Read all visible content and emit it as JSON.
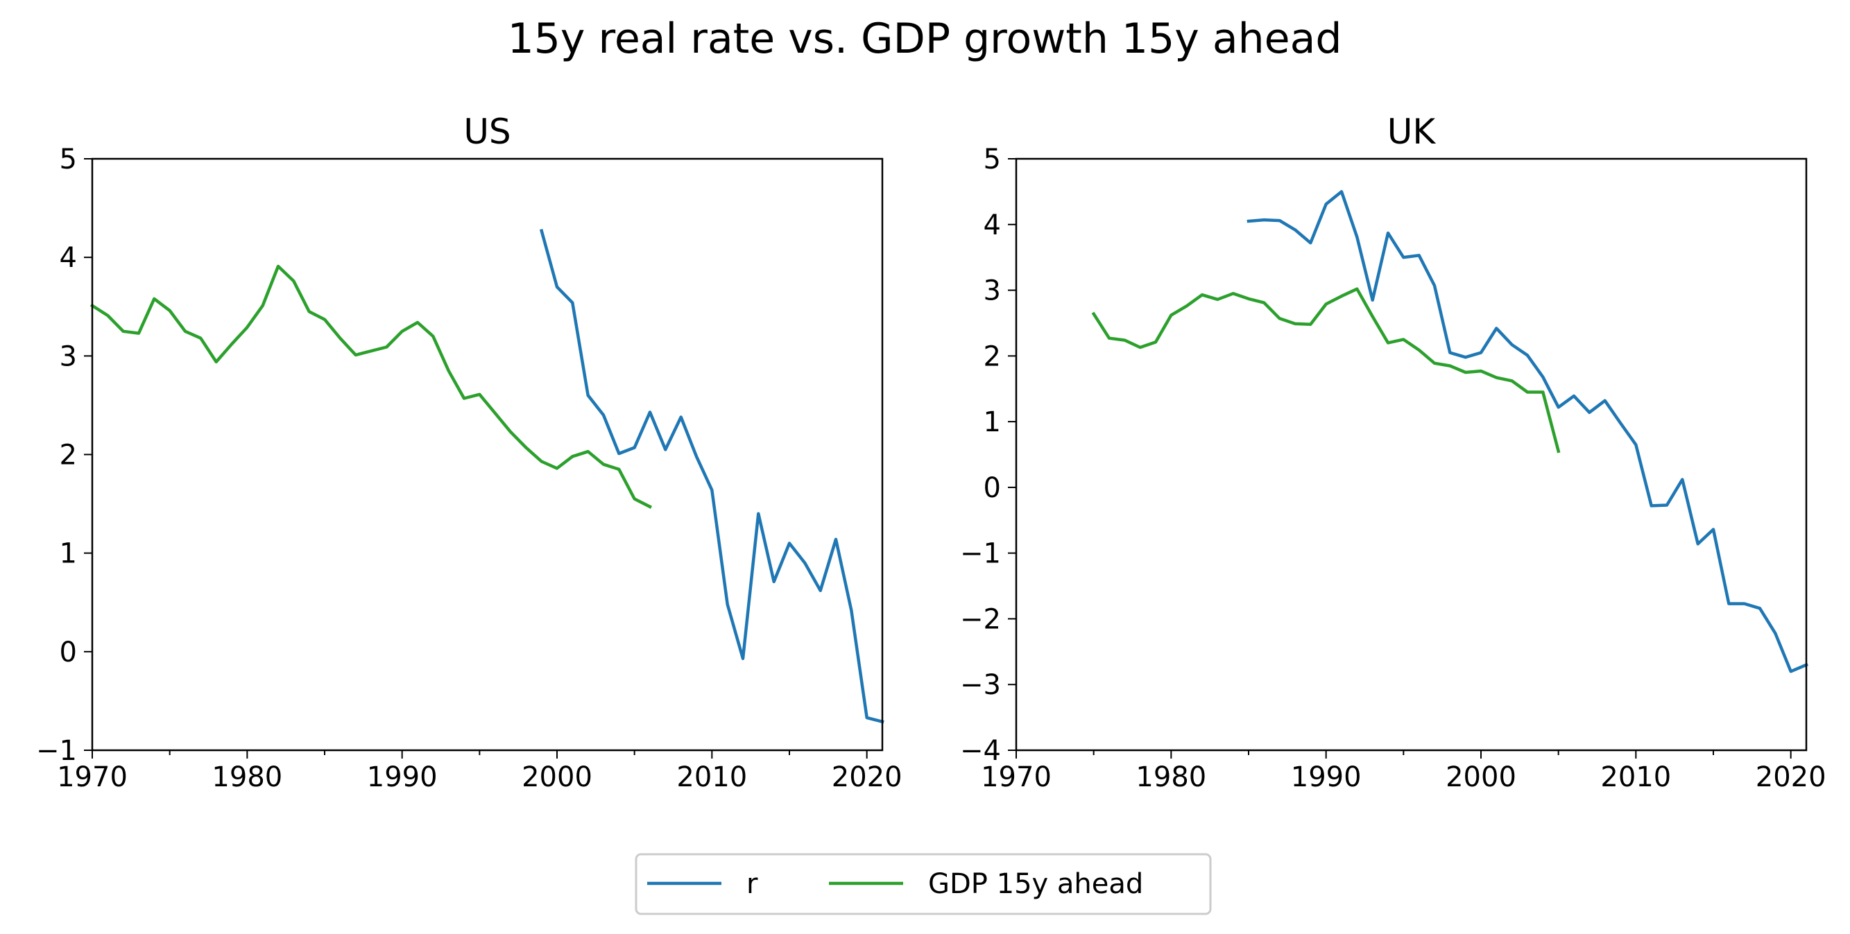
{
  "figure": {
    "suptitle": "15y real rate vs. GDP growth 15y ahead"
  },
  "legend": {
    "entries": [
      {
        "label": "r",
        "color": "#1f77b4"
      },
      {
        "label": "GDP 15y ahead",
        "color": "#2ca02c"
      }
    ],
    "placement": "bottom-center"
  },
  "chart_data": [
    {
      "type": "line",
      "title": "US",
      "xlabel": "",
      "ylabel": "",
      "xlim": [
        1970,
        2021
      ],
      "ylim": [
        -1,
        5
      ],
      "xticks": [
        1970,
        1980,
        1990,
        2000,
        2010,
        2020
      ],
      "xticklabels": [
        "1970",
        "1980",
        "1990",
        "2000",
        "2010",
        "2020"
      ],
      "yticks": [
        -1,
        0,
        1,
        2,
        3,
        4,
        5
      ],
      "yticklabels": [
        "−1",
        "0",
        "1",
        "2",
        "3",
        "4",
        "5"
      ],
      "grid": false,
      "series": [
        {
          "name": "r",
          "color": "#1f77b4",
          "x": [
            1999,
            2000,
            2001,
            2002,
            2003,
            2004,
            2005,
            2006,
            2007,
            2008,
            2009,
            2010,
            2011,
            2012,
            2013,
            2014,
            2015,
            2016,
            2017,
            2018,
            2019,
            2020,
            2021
          ],
          "y": [
            4.27,
            3.7,
            3.54,
            2.6,
            2.4,
            2.01,
            2.07,
            2.43,
            2.05,
            2.38,
            1.98,
            1.64,
            0.48,
            -0.07,
            1.4,
            0.71,
            1.1,
            0.9,
            0.62,
            1.14,
            0.42,
            -0.67,
            -0.71
          ]
        },
        {
          "name": "GDP 15y ahead",
          "color": "#2ca02c",
          "x": [
            1970,
            1971,
            1972,
            1973,
            1974,
            1975,
            1976,
            1977,
            1978,
            1979,
            1980,
            1981,
            1982,
            1983,
            1984,
            1985,
            1986,
            1987,
            1988,
            1989,
            1990,
            1991,
            1992,
            1993,
            1994,
            1995,
            1996,
            1997,
            1998,
            1999,
            2000,
            2001,
            2002,
            2003,
            2004,
            2005,
            2006
          ],
          "y": [
            3.51,
            3.41,
            3.25,
            3.23,
            3.58,
            3.46,
            3.25,
            3.18,
            2.94,
            3.12,
            3.29,
            3.51,
            3.91,
            3.76,
            3.45,
            3.37,
            3.18,
            3.01,
            3.05,
            3.09,
            3.25,
            3.34,
            3.2,
            2.85,
            2.57,
            2.61,
            2.42,
            2.23,
            2.07,
            1.93,
            1.86,
            1.98,
            2.03,
            1.9,
            1.85,
            1.55,
            1.47
          ]
        }
      ]
    },
    {
      "type": "line",
      "title": "UK",
      "xlabel": "",
      "ylabel": "",
      "xlim": [
        1970,
        2021
      ],
      "ylim": [
        -4,
        5
      ],
      "xticks": [
        1970,
        1980,
        1990,
        2000,
        2010,
        2020
      ],
      "xticklabels": [
        "1970",
        "1980",
        "1990",
        "2000",
        "2010",
        "2020"
      ],
      "yticks": [
        -4,
        -3,
        -2,
        -1,
        0,
        1,
        2,
        3,
        4,
        5
      ],
      "yticklabels": [
        "−4",
        "−3",
        "−2",
        "−1",
        "0",
        "1",
        "2",
        "3",
        "4",
        "5"
      ],
      "grid": false,
      "series": [
        {
          "name": "r",
          "color": "#1f77b4",
          "x": [
            1985,
            1986,
            1987,
            1988,
            1989,
            1990,
            1991,
            1992,
            1993,
            1994,
            1995,
            1996,
            1997,
            1998,
            1999,
            2000,
            2001,
            2002,
            2003,
            2004,
            2005,
            2006,
            2007,
            2008,
            2009,
            2010,
            2011,
            2012,
            2013,
            2014,
            2015,
            2016,
            2017,
            2018,
            2019,
            2020,
            2021
          ],
          "y": [
            4.05,
            4.07,
            4.06,
            3.92,
            3.72,
            4.31,
            4.5,
            3.81,
            2.85,
            3.87,
            3.5,
            3.53,
            3.07,
            2.05,
            1.98,
            2.05,
            2.42,
            2.17,
            2.01,
            1.68,
            1.22,
            1.39,
            1.14,
            1.32,
            0.98,
            0.65,
            -0.28,
            -0.27,
            0.12,
            -0.86,
            -0.64,
            -1.77,
            -1.77,
            -1.84,
            -2.22,
            -2.8,
            -2.7
          ]
        },
        {
          "name": "GDP 15y ahead",
          "color": "#2ca02c",
          "x": [
            1975,
            1976,
            1977,
            1978,
            1979,
            1980,
            1981,
            1982,
            1983,
            1984,
            1985,
            1986,
            1987,
            1988,
            1989,
            1990,
            1991,
            1992,
            1993,
            1994,
            1995,
            1996,
            1997,
            1998,
            1999,
            2000,
            2001,
            2002,
            2003,
            2004,
            2005
          ],
          "y": [
            2.64,
            2.27,
            2.24,
            2.13,
            2.21,
            2.62,
            2.76,
            2.93,
            2.86,
            2.95,
            2.87,
            2.81,
            2.57,
            2.49,
            2.48,
            2.79,
            2.91,
            3.02,
            2.6,
            2.2,
            2.25,
            2.09,
            1.89,
            1.85,
            1.75,
            1.77,
            1.67,
            1.62,
            1.45,
            1.45,
            0.55
          ]
        }
      ]
    }
  ]
}
